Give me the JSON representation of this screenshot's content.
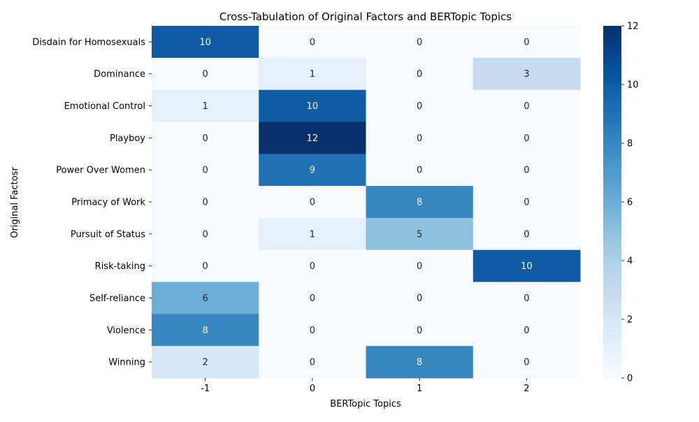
{
  "chart_data": {
    "type": "heatmap",
    "title": "Cross-Tabulation of Original Factors and BERTopic Topics",
    "xlabel": "BERTopic Topics",
    "ylabel": "Original Factosr",
    "x_categories": [
      "-1",
      "0",
      "1",
      "2"
    ],
    "y_categories": [
      "Disdain for Homosexuals",
      "Dominance",
      "Emotional Control",
      "Playboy",
      "Power Over Women",
      "Primacy of Work",
      "Pursuit of Status",
      "Risk-taking",
      "Self-reliance",
      "Violence",
      "Winning"
    ],
    "values": [
      [
        10,
        0,
        0,
        0
      ],
      [
        0,
        1,
        0,
        3
      ],
      [
        1,
        10,
        0,
        0
      ],
      [
        0,
        12,
        0,
        0
      ],
      [
        0,
        9,
        0,
        0
      ],
      [
        0,
        0,
        8,
        0
      ],
      [
        0,
        1,
        5,
        0
      ],
      [
        0,
        0,
        0,
        10
      ],
      [
        6,
        0,
        0,
        0
      ],
      [
        8,
        0,
        0,
        0
      ],
      [
        2,
        0,
        8,
        0
      ]
    ],
    "colorscale": "Blues",
    "color_range": [
      0,
      12
    ],
    "colorbar_ticks": [
      "0",
      "2",
      "4",
      "6",
      "8",
      "10",
      "12"
    ],
    "annotations": true
  }
}
